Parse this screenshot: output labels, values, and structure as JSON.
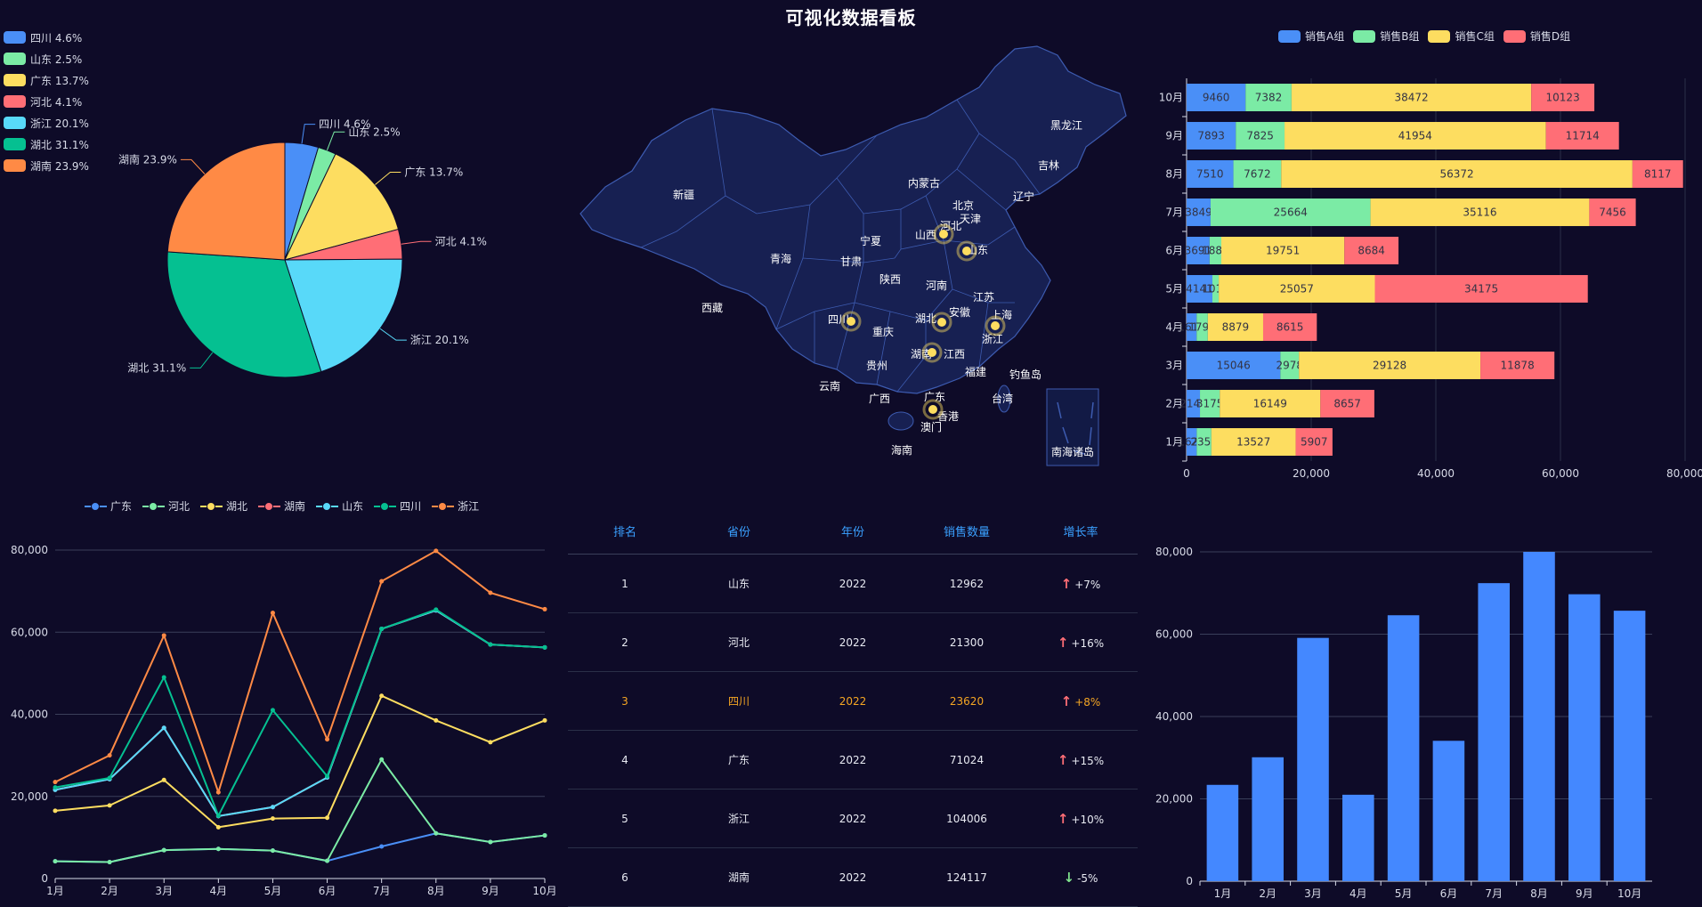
{
  "title": "可视化数据看板",
  "colors": {
    "blue": "#4a8ff7",
    "green": "#7beba5",
    "yellow": "#fddd60",
    "red": "#ff6e76",
    "cyan": "#58d9f9",
    "teal": "#05c091",
    "orange": "#ff8a45",
    "map_fill": "#172052",
    "map_border": "#3d5bb0",
    "bar_blue": "#4488ff"
  },
  "pie_legend": [
    {
      "label": "四川 4.6%",
      "color": "#4a8ff7"
    },
    {
      "label": "山东 2.5%",
      "color": "#7beba5"
    },
    {
      "label": "广东 13.7%",
      "color": "#fddd60"
    },
    {
      "label": "河北 4.1%",
      "color": "#ff6e76"
    },
    {
      "label": "浙江 20.1%",
      "color": "#58d9f9"
    },
    {
      "label": "湖北 31.1%",
      "color": "#05c091"
    },
    {
      "label": "湖南 23.9%",
      "color": "#ff8a45"
    }
  ],
  "map": {
    "labels": [
      "新疆",
      "西藏",
      "青海",
      "甘肃",
      "宁夏",
      "内蒙古",
      "黑龙江",
      "吉林",
      "辽宁",
      "北京",
      "天津",
      "河北",
      "山西",
      "山东",
      "陕西",
      "河南",
      "四川",
      "重庆",
      "湖北",
      "安徽",
      "江苏",
      "上海",
      "浙江",
      "湖南",
      "江西",
      "贵州",
      "云南",
      "广西",
      "广东",
      "福建",
      "台湾",
      "香港",
      "澳门",
      "海南",
      "钓鱼岛",
      "南海诸岛"
    ],
    "hotspots": [
      "河北",
      "山东",
      "四川",
      "湖北",
      "浙江",
      "湖南",
      "广东"
    ]
  },
  "stack_legend": [
    "销售A组",
    "销售B组",
    "销售C组",
    "销售D组"
  ],
  "line_legend": [
    "广东",
    "河北",
    "湖北",
    "湖南",
    "山东",
    "四川",
    "浙江"
  ],
  "table": {
    "headers": [
      "排名",
      "省份",
      "年份",
      "销售数量",
      "增长率"
    ],
    "rows": [
      {
        "rank": "1",
        "province": "山东",
        "year": "2022",
        "count": "12962",
        "arrow": "↑",
        "dir": "up",
        "rate": "+7%"
      },
      {
        "rank": "2",
        "province": "河北",
        "year": "2022",
        "count": "21300",
        "arrow": "↑",
        "dir": "up",
        "rate": "+16%"
      },
      {
        "rank": "3",
        "province": "四川",
        "year": "2022",
        "count": "23620",
        "arrow": "↑",
        "dir": "up",
        "rate": "+8%",
        "highlight": true
      },
      {
        "rank": "4",
        "province": "广东",
        "year": "2022",
        "count": "71024",
        "arrow": "↑",
        "dir": "up",
        "rate": "+15%"
      },
      {
        "rank": "5",
        "province": "浙江",
        "year": "2022",
        "count": "104006",
        "arrow": "↑",
        "dir": "up",
        "rate": "+10%"
      },
      {
        "rank": "6",
        "province": "湖南",
        "year": "2022",
        "count": "124117",
        "arrow": "↓",
        "dir": "down",
        "rate": "-5%"
      }
    ]
  },
  "chart_data": [
    {
      "type": "pie",
      "title": "",
      "labels": [
        "四川",
        "山东",
        "广东",
        "河北",
        "浙江",
        "湖北",
        "湖南"
      ],
      "values": [
        4.6,
        2.5,
        13.7,
        4.1,
        20.1,
        31.1,
        23.9
      ],
      "slice_labels": [
        "四川 4.6%",
        "山东 2.5%",
        "广东 13.7%",
        "河北 4.1%",
        "浙江 20.1%",
        "湖北 31.1%",
        "湖南 23.9%"
      ],
      "legend": "top-left"
    },
    {
      "type": "bar",
      "orientation": "horizontal",
      "stacked": true,
      "categories": [
        "1月",
        "2月",
        "3月",
        "4月",
        "5月",
        "6月",
        "7月",
        "8月",
        "9月",
        "10月"
      ],
      "series": [
        {
          "name": "销售A组",
          "values": [
            1623,
            2148,
            15046,
            1612,
            4141,
            3691,
            3849,
            7510,
            7893,
            9460
          ],
          "labels": [
            "1623",
            "2148",
            "15046",
            "1612",
            "4141",
            "3691",
            "3849",
            "7510",
            "7893",
            "9460"
          ]
        },
        {
          "name": "销售B组",
          "values": [
            2356,
            3175,
            2978,
            1793,
            1016,
            1881,
            25664,
            7672,
            7825,
            7382
          ],
          "labels": [
            "2356",
            "3175",
            "2978",
            "1793",
            "1016",
            "1881",
            "25664",
            "7672",
            "7825",
            "7382"
          ]
        },
        {
          "name": "销售C组",
          "values": [
            13527,
            16149,
            29128,
            8879,
            25057,
            19751,
            35116,
            56372,
            41954,
            38472
          ],
          "labels": [
            "13527",
            "16149",
            "29128",
            "8879",
            "25057",
            "19751",
            "35116",
            "56372",
            "41954",
            "38472"
          ]
        },
        {
          "name": "销售D组",
          "values": [
            5907,
            8657,
            11878,
            8615,
            34175,
            8684,
            7456,
            8117,
            11714,
            10123
          ],
          "labels": [
            "5907",
            "8657",
            "11878",
            "8615",
            "34175",
            "8684",
            "7456",
            "8117",
            "11714",
            "10123"
          ]
        }
      ],
      "xlim": [
        0,
        80000
      ],
      "xticks": [
        "0",
        "20,000",
        "40,000",
        "60,000",
        "80,000"
      ],
      "legend": "top-right"
    },
    {
      "type": "line",
      "x": [
        "1月",
        "2月",
        "3月",
        "4月",
        "5月",
        "6月",
        "7月",
        "8月",
        "9月",
        "10月"
      ],
      "series": [
        {
          "name": "广东",
          "values": [
            4200,
            4000,
            6900,
            7200,
            6800,
            4300,
            7800,
            11000,
            8900,
            10500
          ]
        },
        {
          "name": "河北",
          "values": [
            4200,
            4000,
            6900,
            7200,
            6800,
            4300,
            29000,
            11000,
            8900,
            10500
          ]
        },
        {
          "name": "湖北",
          "values": [
            16500,
            17800,
            24000,
            12500,
            14600,
            14800,
            44500,
            38500,
            33200,
            38500
          ]
        },
        {
          "name": "湖南",
          "values": [
            21600,
            24200,
            36700,
            15200,
            17400,
            24600,
            60800,
            65300,
            57000,
            56300
          ]
        },
        {
          "name": "山东",
          "values": [
            21600,
            24200,
            36700,
            15200,
            17400,
            24600,
            60800,
            65300,
            57000,
            56300
          ]
        },
        {
          "name": "四川",
          "values": [
            22200,
            24500,
            49000,
            15300,
            41000,
            24900,
            60800,
            65500,
            57000,
            56300
          ]
        },
        {
          "name": "浙江",
          "values": [
            23500,
            30000,
            59200,
            21000,
            64700,
            33900,
            72400,
            79800,
            69600,
            65600
          ]
        }
      ],
      "ylim": [
        0,
        80000
      ],
      "yticks": [
        "0",
        "20,000",
        "40,000",
        "60,000",
        "80,000"
      ],
      "legend": "top"
    },
    {
      "type": "bar",
      "categories": [
        "1月",
        "2月",
        "3月",
        "4月",
        "5月",
        "6月",
        "7月",
        "8月",
        "9月",
        "10月"
      ],
      "values": [
        23400,
        30100,
        59100,
        21000,
        64600,
        34100,
        72400,
        80000,
        69700,
        65700
      ],
      "ylim": [
        0,
        80000
      ],
      "yticks": [
        "0",
        "20,000",
        "40,000",
        "60,000",
        "80,000"
      ]
    }
  ]
}
